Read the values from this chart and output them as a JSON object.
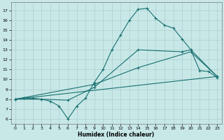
{
  "xlabel": "Humidex (Indice chaleur)",
  "xlim": [
    -0.5,
    23.5
  ],
  "ylim": [
    5.5,
    17.8
  ],
  "xticks": [
    0,
    1,
    2,
    3,
    4,
    5,
    6,
    7,
    8,
    9,
    10,
    11,
    12,
    13,
    14,
    15,
    16,
    17,
    18,
    19,
    20,
    21,
    22,
    23
  ],
  "yticks": [
    6,
    7,
    8,
    9,
    10,
    11,
    12,
    13,
    14,
    15,
    16,
    17
  ],
  "bg_color": "#c8e8e8",
  "line_color": "#1a7070",
  "grid_color": "#a8c8c8",
  "line1_x": [
    0,
    1,
    2,
    3,
    4,
    5,
    6,
    7,
    8,
    9,
    10,
    11,
    12,
    13,
    14,
    15,
    16,
    17,
    18,
    19,
    20,
    21,
    22,
    23
  ],
  "line1_y": [
    8.0,
    8.1,
    8.1,
    8.0,
    7.8,
    7.3,
    6.0,
    7.3,
    8.1,
    9.7,
    11.0,
    13.0,
    14.5,
    16.0,
    17.1,
    17.2,
    16.2,
    15.5,
    15.2,
    14.1,
    13.0,
    10.9,
    10.8,
    10.2
  ],
  "line2_x": [
    0,
    3,
    6,
    9,
    14,
    19,
    20,
    23
  ],
  "line2_y": [
    8.0,
    8.0,
    7.9,
    9.2,
    13.0,
    12.8,
    13.0,
    10.3
  ],
  "line3_x": [
    0,
    9,
    14,
    20,
    23
  ],
  "line3_y": [
    8.0,
    9.5,
    11.2,
    12.8,
    10.3
  ],
  "line4_x": [
    0,
    23
  ],
  "line4_y": [
    8.0,
    10.3
  ]
}
